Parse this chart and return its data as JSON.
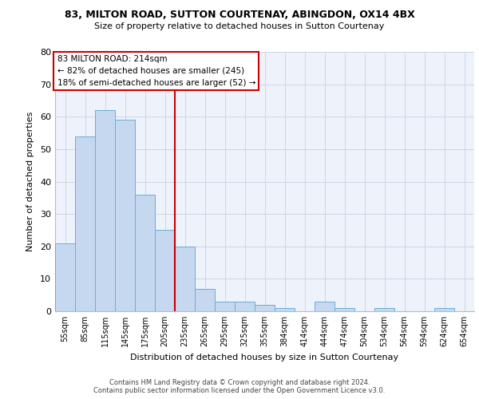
{
  "title_line1": "83, MILTON ROAD, SUTTON COURTENAY, ABINGDON, OX14 4BX",
  "title_line2": "Size of property relative to detached houses in Sutton Courtenay",
  "xlabel": "Distribution of detached houses by size in Sutton Courtenay",
  "ylabel": "Number of detached properties",
  "footnote1": "Contains HM Land Registry data © Crown copyright and database right 2024.",
  "footnote2": "Contains public sector information licensed under the Open Government Licence v3.0.",
  "bar_labels": [
    "55sqm",
    "85sqm",
    "115sqm",
    "145sqm",
    "175sqm",
    "205sqm",
    "235sqm",
    "265sqm",
    "295sqm",
    "325sqm",
    "355sqm",
    "384sqm",
    "414sqm",
    "444sqm",
    "474sqm",
    "504sqm",
    "534sqm",
    "564sqm",
    "594sqm",
    "624sqm",
    "654sqm"
  ],
  "bar_values": [
    21,
    54,
    62,
    59,
    36,
    25,
    20,
    7,
    3,
    3,
    2,
    1,
    0,
    3,
    1,
    0,
    1,
    0,
    0,
    1,
    0
  ],
  "bar_color": "#c5d8f0",
  "bar_edge_color": "#6aaed6",
  "annotation_label1": "83 MILTON ROAD: 214sqm",
  "annotation_label2": "← 82% of detached houses are smaller (245)",
  "annotation_label3": "18% of semi-detached houses are larger (52) →",
  "vline_x": 5.5,
  "vline_color": "#cc0000",
  "annotation_box_color": "#cc0000",
  "bg_color": "#eef2fb",
  "grid_color": "#d0d5e8",
  "ylim": [
    0,
    80
  ],
  "yticks": [
    0,
    10,
    20,
    30,
    40,
    50,
    60,
    70,
    80
  ]
}
